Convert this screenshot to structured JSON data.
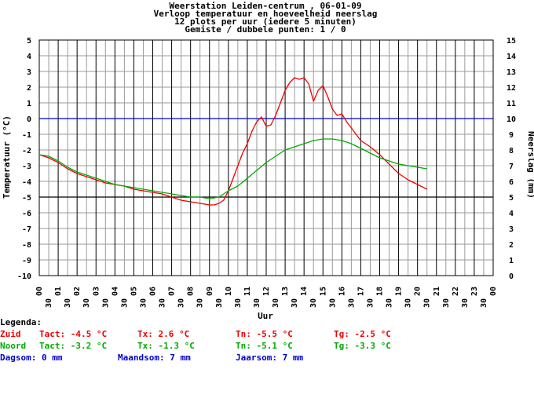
{
  "chart_data": {
    "type": "line",
    "title_lines": [
      "Weerstation Leiden-centrum , 06-01-09",
      "Verloop temperatuur en hoeveelheid neerslag",
      "12 plots per uur (iedere 5 minuten)",
      "Gemiste / dubbele punten: 1 / 0"
    ],
    "xlabel": "Uur",
    "ylabel_left": "Temperatuur (°C)",
    "ylabel_right": "Neerslag (mm)",
    "ylim_left": [
      -10,
      5
    ],
    "ylim_right": [
      0,
      15
    ],
    "xlim": [
      0,
      24
    ],
    "y_ticks_left": [
      "5",
      "4",
      "3",
      "2",
      "1",
      "0",
      "-1",
      "-2",
      "-3",
      "-4",
      "-5",
      "-6",
      "-7",
      "-8",
      "-9",
      "-10"
    ],
    "y_ticks_right": [
      "15",
      "14",
      "13",
      "12",
      "11",
      "10",
      "9",
      "8",
      "7",
      "6",
      "5",
      "4",
      "3",
      "2",
      "1",
      "0"
    ],
    "x_hour_labels": [
      "00",
      "01",
      "02",
      "03",
      "04",
      "05",
      "06",
      "07",
      "08",
      "09",
      "10",
      "11",
      "12",
      "13",
      "14",
      "15",
      "16",
      "17",
      "18",
      "19",
      "20",
      "21",
      "22",
      "23",
      "00"
    ],
    "x_half_label": "30",
    "reference_lines": [
      {
        "value": 0,
        "color": "#0000cc"
      },
      {
        "value": -5,
        "color": "#000000"
      }
    ],
    "grid": true,
    "series": [
      {
        "name": "Zuid",
        "color": "#ee0000",
        "x": [
          0,
          0.5,
          1,
          1.5,
          2,
          2.5,
          3,
          3.5,
          4,
          4.5,
          5,
          5.5,
          6,
          6.5,
          7,
          7.5,
          8,
          8.5,
          9,
          9.25,
          9.5,
          9.75,
          10,
          10.25,
          10.5,
          10.75,
          11,
          11.25,
          11.5,
          11.75,
          12,
          12.25,
          12.5,
          12.75,
          13,
          13.25,
          13.5,
          13.75,
          14,
          14.25,
          14.5,
          14.75,
          15,
          15.25,
          15.5,
          15.75,
          16,
          16.25,
          16.5,
          16.75,
          17,
          17.5,
          18,
          18.5,
          19,
          19.5,
          20,
          20.5
        ],
        "y": [
          -2.3,
          -2.5,
          -2.8,
          -3.2,
          -3.5,
          -3.7,
          -3.9,
          -4.1,
          -4.2,
          -4.3,
          -4.5,
          -4.6,
          -4.7,
          -4.8,
          -5.0,
          -5.2,
          -5.3,
          -5.4,
          -5.5,
          -5.5,
          -5.4,
          -5.2,
          -4.6,
          -3.8,
          -3.0,
          -2.2,
          -1.6,
          -0.8,
          -0.2,
          0.1,
          -0.5,
          -0.4,
          0.2,
          1.0,
          1.8,
          2.3,
          2.6,
          2.5,
          2.6,
          2.2,
          1.1,
          1.8,
          2.1,
          1.4,
          0.6,
          0.2,
          0.3,
          -0.2,
          -0.6,
          -1.0,
          -1.4,
          -1.8,
          -2.3,
          -2.9,
          -3.5,
          -3.9,
          -4.2,
          -4.5
        ]
      },
      {
        "name": "Noord",
        "color": "#00aa00",
        "x": [
          0,
          0.5,
          1,
          1.5,
          2,
          2.5,
          3,
          3.5,
          4,
          4.5,
          5,
          5.5,
          6,
          6.5,
          7,
          7.5,
          8,
          8.5,
          9,
          9.5,
          10,
          10.5,
          11,
          11.5,
          12,
          12.5,
          13,
          13.5,
          14,
          14.5,
          15,
          15.5,
          16,
          16.5,
          17,
          17.5,
          18,
          18.5,
          19,
          19.5,
          20,
          20.5
        ],
        "y": [
          -2.3,
          -2.4,
          -2.7,
          -3.1,
          -3.4,
          -3.6,
          -3.8,
          -4.0,
          -4.2,
          -4.3,
          -4.4,
          -4.5,
          -4.6,
          -4.7,
          -4.8,
          -4.9,
          -5.0,
          -5.0,
          -5.1,
          -5.0,
          -4.6,
          -4.3,
          -3.8,
          -3.3,
          -2.8,
          -2.4,
          -2.0,
          -1.8,
          -1.6,
          -1.4,
          -1.3,
          -1.3,
          -1.4,
          -1.6,
          -1.9,
          -2.2,
          -2.5,
          -2.7,
          -2.9,
          -3.0,
          -3.1,
          -3.2
        ]
      }
    ]
  },
  "legend": {
    "title": "Legenda:",
    "rows": [
      {
        "name": "Zuid",
        "color": "#ee0000",
        "tact": "Tact: -4.5 °C",
        "tx": "Tx: 2.6 °C",
        "tn": "Tn: -5.5 °C",
        "tg": "Tg: -2.5 °C"
      },
      {
        "name": "Noord",
        "color": "#00aa00",
        "tact": "Tact: -3.2 °C",
        "tx": "Tx: -1.3 °C",
        "tn": "Tn: -5.1 °C",
        "tg": "Tg: -3.3 °C"
      }
    ],
    "rain": {
      "color": "#0000cc",
      "day": "Dagsom: 0 mm",
      "month": "Maandsom: 7 mm",
      "year": "Jaarsom: 7 mm"
    }
  }
}
